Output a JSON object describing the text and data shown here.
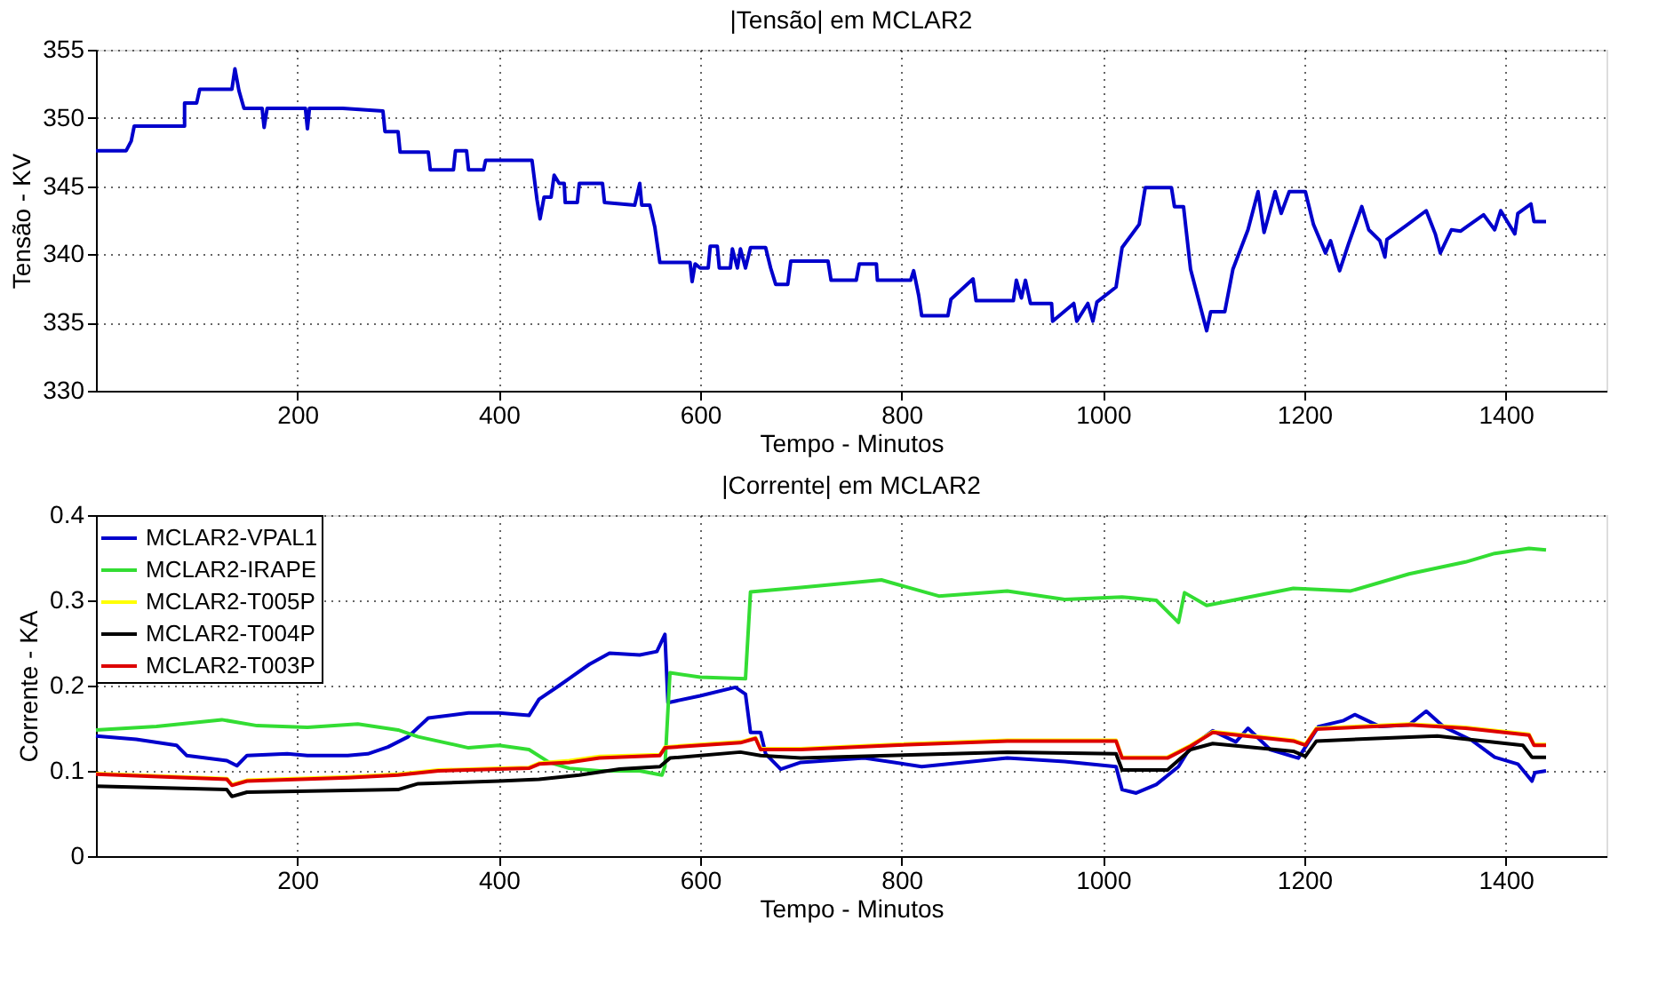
{
  "chart_data": [
    {
      "type": "line",
      "title": "|Tensão| em MCLAR2",
      "xlabel": "Tempo - Minutos",
      "ylabel": "Tensão - KV",
      "xlim": [
        0,
        1500
      ],
      "xticks": [
        200,
        400,
        600,
        800,
        1000,
        1200,
        1400
      ],
      "ylim": [
        330,
        355
      ],
      "yticks": [
        330,
        335,
        340,
        345,
        350,
        355
      ],
      "grid": true,
      "legend": false,
      "series": [
        {
          "color": "#0000cc",
          "x": [
            0,
            30,
            35,
            38,
            88,
            88,
            100,
            103,
            135,
            138,
            142,
            147,
            165,
            167,
            170,
            208,
            210,
            212,
            245,
            285,
            287,
            300,
            302,
            330,
            332,
            355,
            357,
            368,
            370,
            385,
            387,
            433,
            438,
            441,
            445,
            452,
            455,
            460,
            465,
            466,
            478,
            480,
            503,
            505,
            535,
            540,
            542,
            550,
            555,
            560,
            590,
            592,
            595,
            600,
            608,
            610,
            617,
            619,
            630,
            632,
            637,
            640,
            645,
            650,
            665,
            670,
            675,
            687,
            690,
            727,
            730,
            755,
            758,
            775,
            776,
            809,
            812,
            817,
            820,
            846,
            849,
            871,
            874,
            911,
            914,
            919,
            923,
            928,
            949,
            950,
            971,
            974,
            985,
            990,
            994,
            1013,
            1019,
            1036,
            1042,
            1068,
            1071,
            1080,
            1087,
            1103,
            1107,
            1121,
            1129,
            1144,
            1154,
            1160,
            1171,
            1177,
            1185,
            1201,
            1209,
            1221,
            1226,
            1232,
            1235,
            1244,
            1257,
            1264,
            1275,
            1280,
            1282,
            1301,
            1321,
            1330,
            1335,
            1346,
            1355,
            1378,
            1389,
            1395,
            1409,
            1412,
            1425,
            1428,
            1440
          ],
          "values": [
            347.6,
            347.6,
            348.3,
            349.4,
            349.4,
            351.1,
            351.1,
            352.1,
            352.1,
            353.6,
            352,
            350.7,
            350.7,
            349.3,
            350.7,
            350.7,
            349.2,
            350.7,
            350.7,
            350.5,
            349,
            349,
            347.5,
            347.5,
            346.2,
            346.2,
            347.6,
            347.6,
            346.2,
            346.2,
            346.9,
            346.9,
            344,
            342.6,
            344.2,
            344.2,
            345.8,
            345.2,
            345.2,
            343.8,
            343.8,
            345.2,
            345.2,
            343.8,
            343.6,
            345.2,
            343.6,
            343.6,
            342,
            339.4,
            339.4,
            338,
            339.3,
            339,
            339,
            340.6,
            340.6,
            339,
            339,
            340.4,
            339,
            340.4,
            339,
            340.5,
            340.5,
            339,
            337.8,
            337.8,
            339.5,
            339.5,
            338.1,
            338.1,
            339.3,
            339.3,
            338.1,
            338.1,
            338.8,
            337,
            335.5,
            335.5,
            336.7,
            338.2,
            336.6,
            336.6,
            338.1,
            336.8,
            338.1,
            336.4,
            336.4,
            335.1,
            336.4,
            335.1,
            336.4,
            335.1,
            336.5,
            337.6,
            340.5,
            342.2,
            344.9,
            344.9,
            343.5,
            343.5,
            338.9,
            334.4,
            335.8,
            335.8,
            338.9,
            341.8,
            344.6,
            341.6,
            344.6,
            343,
            344.6,
            344.6,
            342.2,
            340.1,
            341,
            339.5,
            338.8,
            340.8,
            343.5,
            341.8,
            341,
            339.8,
            341.1,
            342.1,
            343.2,
            341.5,
            340.1,
            341.8,
            341.7,
            342.9,
            341.8,
            343.2,
            341.5,
            343,
            343.7,
            342.4,
            342.4
          ]
        }
      ]
    },
    {
      "type": "line",
      "title": "|Corrente| em MCLAR2",
      "xlabel": "Tempo - Minutos",
      "ylabel": "Corrente - KA",
      "xlim": [
        0,
        1500
      ],
      "xticks": [
        200,
        400,
        600,
        800,
        1000,
        1200,
        1400
      ],
      "ylim": [
        0,
        0.4
      ],
      "yticks": [
        0,
        0.1,
        0.2,
        0.3,
        0.4
      ],
      "grid": true,
      "legend": "top left",
      "series": [
        {
          "name": "MCLAR2-VPAL1",
          "color": "#0000cc",
          "x": [
            0,
            40,
            80,
            90,
            130,
            140,
            150,
            190,
            210,
            250,
            270,
            290,
            310,
            330,
            370,
            400,
            430,
            440,
            460,
            490,
            510,
            540,
            557,
            565,
            568,
            600,
            635,
            645,
            650,
            660,
            665,
            680,
            700,
            763,
            820,
            905,
            962,
            1013,
            1019,
            1033,
            1053,
            1075,
            1087,
            1109,
            1132,
            1144,
            1166,
            1194,
            1214,
            1239,
            1250,
            1275,
            1304,
            1321,
            1338,
            1366,
            1389,
            1412,
            1426,
            1429,
            1440
          ],
          "values": [
            0.141,
            0.137,
            0.13,
            0.118,
            0.112,
            0.106,
            0.118,
            0.12,
            0.118,
            0.118,
            0.12,
            0.128,
            0.14,
            0.162,
            0.168,
            0.168,
            0.165,
            0.184,
            0.2,
            0.225,
            0.238,
            0.236,
            0.24,
            0.26,
            0.18,
            0.188,
            0.198,
            0.19,
            0.145,
            0.145,
            0.12,
            0.102,
            0.11,
            0.115,
            0.105,
            0.115,
            0.111,
            0.105,
            0.078,
            0.074,
            0.084,
            0.105,
            0.128,
            0.147,
            0.134,
            0.15,
            0.125,
            0.115,
            0.152,
            0.159,
            0.166,
            0.152,
            0.154,
            0.17,
            0.152,
            0.136,
            0.116,
            0.108,
            0.088,
            0.098,
            0.1
          ]
        },
        {
          "name": "MCLAR2-IRAPE",
          "color": "#33dd33",
          "x": [
            0,
            60,
            125,
            160,
            210,
            260,
            300,
            320,
            370,
            400,
            430,
            450,
            470,
            500,
            540,
            562,
            565,
            570,
            600,
            645,
            650,
            700,
            780,
            837,
            905,
            962,
            1019,
            1053,
            1075,
            1081,
            1103,
            1189,
            1246,
            1304,
            1360,
            1389,
            1423,
            1440
          ],
          "values": [
            0.148,
            0.152,
            0.16,
            0.153,
            0.151,
            0.155,
            0.148,
            0.14,
            0.127,
            0.13,
            0.125,
            0.11,
            0.103,
            0.1,
            0.1,
            0.095,
            0.105,
            0.215,
            0.21,
            0.208,
            0.31,
            0.315,
            0.324,
            0.305,
            0.311,
            0.301,
            0.304,
            0.3,
            0.274,
            0.309,
            0.294,
            0.314,
            0.311,
            0.331,
            0.345,
            0.355,
            0.361,
            0.359
          ]
        },
        {
          "name": "MCLAR2-T005P",
          "color": "#ffff00",
          "x": [
            0,
            130,
            135,
            150,
            250,
            300,
            340,
            400,
            430,
            440,
            470,
            500,
            560,
            565,
            600,
            640,
            655,
            660,
            700,
            792,
            905,
            1013,
            1019,
            1064,
            1087,
            1109,
            1189,
            1201,
            1212,
            1304,
            1360,
            1423,
            1428,
            1440
          ],
          "values": [
            0.097,
            0.091,
            0.084,
            0.089,
            0.093,
            0.096,
            0.101,
            0.103,
            0.104,
            0.109,
            0.112,
            0.117,
            0.119,
            0.128,
            0.131,
            0.134,
            0.139,
            0.126,
            0.126,
            0.131,
            0.136,
            0.136,
            0.116,
            0.116,
            0.13,
            0.146,
            0.136,
            0.131,
            0.15,
            0.155,
            0.151,
            0.143,
            0.131,
            0.131
          ]
        },
        {
          "name": "MCLAR2-T004P",
          "color": "#000000",
          "x": [
            0,
            130,
            135,
            150,
            300,
            320,
            400,
            440,
            480,
            520,
            560,
            570,
            640,
            660,
            700,
            905,
            1013,
            1019,
            1064,
            1087,
            1109,
            1189,
            1201,
            1212,
            1332,
            1417,
            1426,
            1440
          ],
          "values": [
            0.082,
            0.078,
            0.07,
            0.075,
            0.078,
            0.085,
            0.088,
            0.09,
            0.095,
            0.102,
            0.105,
            0.115,
            0.122,
            0.118,
            0.115,
            0.122,
            0.12,
            0.101,
            0.101,
            0.125,
            0.132,
            0.123,
            0.117,
            0.135,
            0.141,
            0.13,
            0.116,
            0.116
          ]
        },
        {
          "name": "MCLAR2-T003P",
          "color": "#dd0000",
          "x": [
            0,
            130,
            135,
            150,
            250,
            300,
            340,
            400,
            430,
            440,
            470,
            500,
            560,
            565,
            600,
            640,
            655,
            660,
            700,
            792,
            905,
            1013,
            1019,
            1064,
            1087,
            1109,
            1189,
            1201,
            1212,
            1304,
            1360,
            1423,
            1428,
            1440
          ],
          "values": [
            0.096,
            0.09,
            0.083,
            0.088,
            0.092,
            0.095,
            0.1,
            0.102,
            0.103,
            0.108,
            0.11,
            0.115,
            0.118,
            0.127,
            0.13,
            0.133,
            0.138,
            0.125,
            0.125,
            0.13,
            0.135,
            0.135,
            0.115,
            0.115,
            0.129,
            0.145,
            0.135,
            0.13,
            0.149,
            0.154,
            0.15,
            0.142,
            0.13,
            0.13
          ]
        }
      ]
    }
  ]
}
